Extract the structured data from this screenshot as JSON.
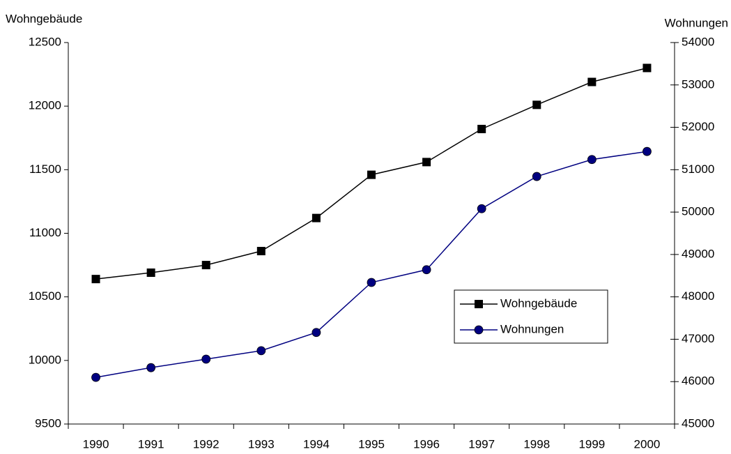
{
  "chart_data": {
    "type": "line",
    "y_label": "Wohngebäude",
    "y2_label": "Wohnungen",
    "categories": [
      "1990",
      "1991",
      "1992",
      "1993",
      "1994",
      "1995",
      "1996",
      "1997",
      "1998",
      "1999",
      "2000"
    ],
    "series": [
      {
        "name": "Wohngebäude",
        "color": "#000000",
        "marker": "square",
        "values": [
          10640,
          10690,
          10750,
          10860,
          11120,
          11460,
          11560,
          11820,
          12010,
          12190,
          12300
        ]
      },
      {
        "name": "Wohnungen",
        "color": "#000080",
        "marker": "circle",
        "axis": "y2",
        "values": [
          46100,
          46330,
          46530,
          46730,
          47160,
          48340,
          48640,
          50080,
          50840,
          51240,
          51430
        ]
      }
    ],
    "ylim": [
      9500,
      12500
    ],
    "yticks": [
      9500,
      10000,
      10500,
      11000,
      11500,
      12000,
      12500
    ],
    "y2lim": [
      45000,
      54000
    ],
    "y2ticks": [
      45000,
      46000,
      47000,
      48000,
      49000,
      50000,
      51000,
      52000,
      53000,
      54000
    ],
    "grid": false,
    "legend": "right"
  }
}
